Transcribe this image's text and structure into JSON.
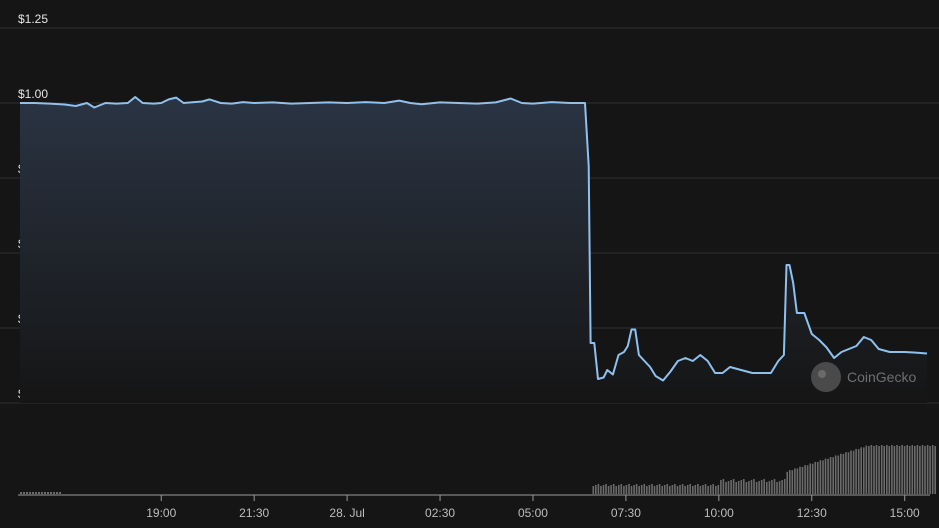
{
  "chart_data": {
    "type": "line",
    "title": "",
    "xlabel": "",
    "ylabel": "",
    "ylim": [
      0,
      1.25
    ],
    "y_ticks": [
      {
        "value": 1.25,
        "label": "$1.25"
      },
      {
        "value": 1.0,
        "label": "$1.00"
      },
      {
        "value": 0.75,
        "label": "$0.750000"
      },
      {
        "value": 0.5,
        "label": "$0.500000"
      },
      {
        "value": 0.25,
        "label": "$0.250000"
      },
      {
        "value": 0.0,
        "label": "$0.00"
      }
    ],
    "x_ticks": [
      {
        "t": 19.0,
        "label": "19:00"
      },
      {
        "t": 21.5,
        "label": "21:30"
      },
      {
        "t": 24.0,
        "label": "28. Jul"
      },
      {
        "t": 26.5,
        "label": "02:30"
      },
      {
        "t": 29.0,
        "label": "05:00"
      },
      {
        "t": 31.5,
        "label": "07:30"
      },
      {
        "t": 34.0,
        "label": "10:00"
      },
      {
        "t": 36.5,
        "label": "12:30"
      },
      {
        "t": 39.0,
        "label": "15:00"
      }
    ],
    "x_range_hours": [
      15.2,
      39.6
    ],
    "grid": true,
    "watermark": "CoinGecko",
    "colors": {
      "line": "#8fc1ef",
      "area_top": "#2a3443",
      "volume": "#6b6b6b",
      "grid": "#2e2e2e"
    },
    "series": [
      {
        "price": [
          [
            15.2,
            1.0
          ],
          [
            15.6,
            1.0
          ],
          [
            16.0,
            0.998
          ],
          [
            16.4,
            0.995
          ],
          [
            16.7,
            0.99
          ],
          [
            17.0,
            1.0
          ],
          [
            17.2,
            0.985
          ],
          [
            17.5,
            1.0
          ],
          [
            17.8,
            0.998
          ],
          [
            18.1,
            1.0
          ],
          [
            18.3,
            1.02
          ],
          [
            18.5,
            1.0
          ],
          [
            18.8,
            0.998
          ],
          [
            19.0,
            1.0
          ],
          [
            19.2,
            1.012
          ],
          [
            19.4,
            1.018
          ],
          [
            19.6,
            1.0
          ],
          [
            19.8,
            1.002
          ],
          [
            20.1,
            1.005
          ],
          [
            20.3,
            1.012
          ],
          [
            20.6,
            1.0
          ],
          [
            20.9,
            0.998
          ],
          [
            21.2,
            1.003
          ],
          [
            21.5,
            1.0
          ],
          [
            22.0,
            1.002
          ],
          [
            22.5,
            0.998
          ],
          [
            23.0,
            1.0
          ],
          [
            23.5,
            1.002
          ],
          [
            24.0,
            1.0
          ],
          [
            24.5,
            1.003
          ],
          [
            25.0,
            1.0
          ],
          [
            25.4,
            1.008
          ],
          [
            25.7,
            1.0
          ],
          [
            26.0,
            0.996
          ],
          [
            26.5,
            1.002
          ],
          [
            27.0,
            1.0
          ],
          [
            27.5,
            0.998
          ],
          [
            28.0,
            1.002
          ],
          [
            28.4,
            1.015
          ],
          [
            28.7,
            1.0
          ],
          [
            29.0,
            0.998
          ],
          [
            29.5,
            1.003
          ],
          [
            30.0,
            1.0
          ],
          [
            30.4,
            1.0
          ],
          [
            30.5,
            0.79
          ],
          [
            30.55,
            0.2
          ],
          [
            30.65,
            0.2
          ],
          [
            30.75,
            0.08
          ],
          [
            30.9,
            0.085
          ],
          [
            31.0,
            0.11
          ],
          [
            31.15,
            0.095
          ],
          [
            31.3,
            0.16
          ],
          [
            31.45,
            0.17
          ],
          [
            31.55,
            0.19
          ],
          [
            31.65,
            0.245
          ],
          [
            31.75,
            0.245
          ],
          [
            31.85,
            0.16
          ],
          [
            32.0,
            0.14
          ],
          [
            32.15,
            0.12
          ],
          [
            32.3,
            0.09
          ],
          [
            32.5,
            0.075
          ],
          [
            32.7,
            0.105
          ],
          [
            32.9,
            0.14
          ],
          [
            33.1,
            0.15
          ],
          [
            33.3,
            0.14
          ],
          [
            33.5,
            0.16
          ],
          [
            33.7,
            0.14
          ],
          [
            33.9,
            0.1
          ],
          [
            34.1,
            0.1
          ],
          [
            34.3,
            0.12
          ],
          [
            34.6,
            0.11
          ],
          [
            34.9,
            0.1
          ],
          [
            35.2,
            0.1
          ],
          [
            35.4,
            0.1
          ],
          [
            35.6,
            0.14
          ],
          [
            35.75,
            0.16
          ],
          [
            35.82,
            0.46
          ],
          [
            35.9,
            0.46
          ],
          [
            36.0,
            0.4
          ],
          [
            36.1,
            0.3
          ],
          [
            36.3,
            0.3
          ],
          [
            36.5,
            0.23
          ],
          [
            36.7,
            0.21
          ],
          [
            36.9,
            0.185
          ],
          [
            37.1,
            0.15
          ],
          [
            37.3,
            0.17
          ],
          [
            37.5,
            0.18
          ],
          [
            37.7,
            0.19
          ],
          [
            37.9,
            0.22
          ],
          [
            38.1,
            0.21
          ],
          [
            38.3,
            0.18
          ],
          [
            38.6,
            0.17
          ],
          [
            39.0,
            0.17
          ],
          [
            39.3,
            0.168
          ],
          [
            39.6,
            0.165
          ]
        ]
      }
    ]
  }
}
